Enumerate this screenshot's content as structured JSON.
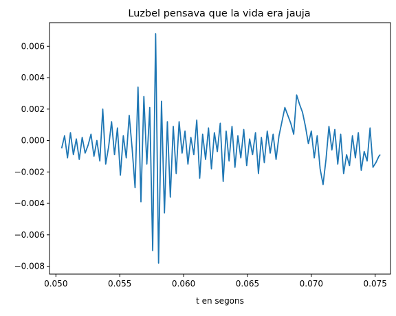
{
  "chart_data": {
    "type": "line",
    "title": "Luzbel pensava que la vida era jauja",
    "xlabel": "t en segons",
    "ylabel": "",
    "xlim": [
      0.0495,
      0.0762
    ],
    "ylim": [
      -0.0085,
      0.0075
    ],
    "x_ticks": [
      0.05,
      0.055,
      0.06,
      0.065,
      0.07,
      0.075
    ],
    "x_tick_labels": [
      "0.050",
      "0.055",
      "0.060",
      "0.065",
      "0.070",
      "0.075"
    ],
    "y_ticks": [
      -0.008,
      -0.006,
      -0.004,
      -0.002,
      0.0,
      0.002,
      0.004,
      0.006
    ],
    "y_tick_labels": [
      "−0.008",
      "−0.006",
      "−0.004",
      "−0.002",
      "0.000",
      "0.002",
      "0.004",
      "0.006"
    ],
    "grid": false,
    "series": [
      {
        "color": "#1f77b4",
        "x": [
          0.05045,
          0.05068,
          0.05091,
          0.05114,
          0.05137,
          0.0516,
          0.05183,
          0.05206,
          0.05229,
          0.05252,
          0.05275,
          0.05298,
          0.05321,
          0.05344,
          0.05367,
          0.0539,
          0.05413,
          0.05436,
          0.05459,
          0.05482,
          0.05505,
          0.05528,
          0.05551,
          0.05574,
          0.05597,
          0.0562,
          0.05643,
          0.05666,
          0.05689,
          0.05712,
          0.05735,
          0.05758,
          0.05781,
          0.05804,
          0.05827,
          0.0585,
          0.05873,
          0.05896,
          0.05919,
          0.05942,
          0.05965,
          0.05988,
          0.06011,
          0.06034,
          0.06057,
          0.0608,
          0.06103,
          0.06126,
          0.06149,
          0.06172,
          0.06195,
          0.06218,
          0.06241,
          0.06264,
          0.06287,
          0.0631,
          0.06333,
          0.06356,
          0.06379,
          0.06402,
          0.06425,
          0.06448,
          0.06471,
          0.06494,
          0.06517,
          0.0654,
          0.06563,
          0.06586,
          0.06609,
          0.06632,
          0.06655,
          0.06678,
          0.06701,
          0.06724,
          0.06747,
          0.0677,
          0.06793,
          0.06816,
          0.06839,
          0.06862,
          0.06885,
          0.06908,
          0.06931,
          0.06954,
          0.06977,
          0.07,
          0.07023,
          0.07046,
          0.07069,
          0.07092,
          0.07115,
          0.07138,
          0.07161,
          0.07184,
          0.07207,
          0.0723,
          0.07253,
          0.07276,
          0.07299,
          0.07322,
          0.07345,
          0.07368,
          0.07391,
          0.07414,
          0.07437,
          0.0746,
          0.07483,
          0.07506,
          0.07529,
          0.0754
        ],
        "y": [
          -0.0005,
          0.0003,
          -0.0011,
          0.0005,
          -0.0009,
          0.0001,
          -0.0012,
          0.0002,
          -0.0008,
          -0.0003,
          0.0004,
          -0.001,
          0.0,
          -0.0013,
          0.002,
          -0.0015,
          -0.0004,
          0.0012,
          -0.0009,
          0.0008,
          -0.0022,
          0.0003,
          -0.0011,
          0.0016,
          -0.0005,
          -0.003,
          0.0034,
          -0.0039,
          0.0028,
          -0.0015,
          0.0021,
          -0.007,
          0.0068,
          -0.0078,
          0.0025,
          -0.0046,
          0.0012,
          -0.0036,
          0.0009,
          -0.0021,
          0.0012,
          -0.0008,
          0.0006,
          -0.0015,
          0.0002,
          -0.0009,
          0.0013,
          -0.0024,
          0.0004,
          -0.0012,
          0.0008,
          -0.0018,
          0.0005,
          -0.0007,
          0.0011,
          -0.0026,
          0.0006,
          -0.0013,
          0.0009,
          -0.0017,
          0.0003,
          -0.0011,
          0.0007,
          -0.0016,
          0.0001,
          -0.0009,
          0.0005,
          -0.0021,
          0.0002,
          -0.0014,
          0.0006,
          -0.0008,
          0.0004,
          -0.0012,
          0.0003,
          0.0012,
          0.0021,
          0.0016,
          0.0011,
          0.0004,
          0.0029,
          0.0023,
          0.0018,
          0.0009,
          -0.0002,
          0.0006,
          -0.0011,
          0.0003,
          -0.0018,
          -0.0028,
          -0.0012,
          0.0009,
          -0.0006,
          0.0007,
          -0.0015,
          0.0004,
          -0.0021,
          -0.0009,
          -0.0016,
          0.0003,
          -0.0011,
          0.0005,
          -0.0019,
          -0.0007,
          -0.0013,
          0.0008,
          -0.0017,
          -0.0014,
          -0.001,
          -0.0009
        ]
      }
    ]
  }
}
